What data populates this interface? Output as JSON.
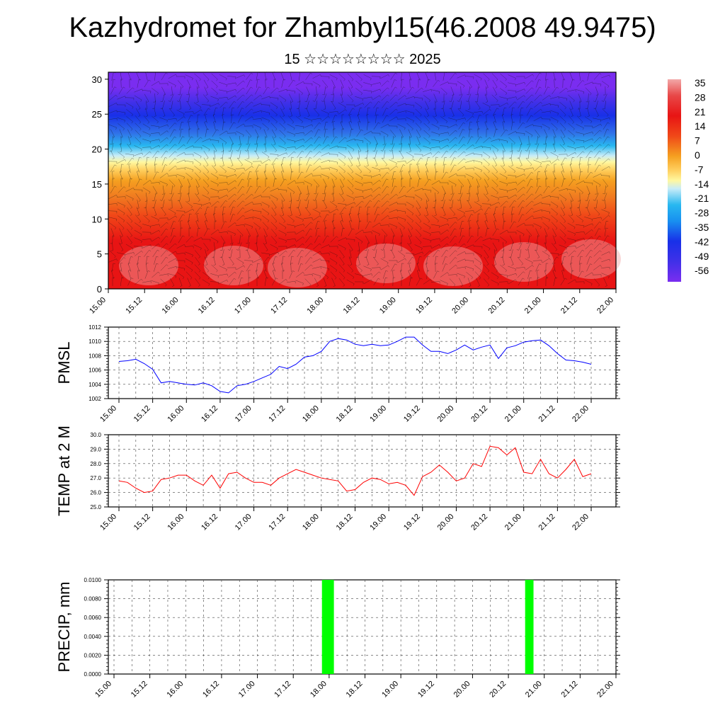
{
  "title": "Kazhydromet for Zhambyl15(46.2008 49.9475)",
  "subtitle": "15 ☆☆☆☆☆☆☆☆ 2025",
  "x_ticks": [
    "15.00",
    "15.12",
    "16.00",
    "16.12",
    "17.00",
    "17.12",
    "18.00",
    "18.12",
    "19.00",
    "19.12",
    "20.00",
    "20.12",
    "21.00",
    "21.12",
    "22.00"
  ],
  "chart_data": [
    {
      "type": "heatmap",
      "xlabel": "",
      "ylabel": "",
      "y_ticks": [
        0,
        5,
        10,
        15,
        20,
        25,
        30
      ],
      "ylim": [
        0,
        31
      ],
      "x_categories_ref": "x_ticks",
      "colorbar_labels": [
        "35",
        "28",
        "21",
        "14",
        "7",
        "0",
        "-7",
        "-14",
        "-21",
        "-28",
        "-35",
        "-42",
        "-49",
        "-56"
      ],
      "colorbar_range": [
        -60,
        38
      ],
      "colors": {
        "coldest": "#7a2df0",
        "cold": "#1830e8",
        "cool": "#28b8f0",
        "mild": "#fff8a0",
        "warm": "#f5a020",
        "hot": "#e81414",
        "hottest": "#f2a8a8"
      },
      "notes": "vertical profile 0-31 with wind barbs overlaid"
    },
    {
      "type": "line",
      "ylabel": "PMSL",
      "ylim": [
        1002,
        1012
      ],
      "y_ticks": [
        "1002",
        "1004",
        "1006",
        "1008",
        "1010",
        "1012"
      ],
      "series": [
        {
          "color": "#0000ff",
          "values": [
            1007.2,
            1007.3,
            1007.5,
            1006.9,
            1006.1,
            1004.2,
            1004.4,
            1004.2,
            1004.0,
            1003.9,
            1004.2,
            1003.8,
            1003.0,
            1002.8,
            1003.8,
            1004.0,
            1004.4,
            1004.9,
            1005.4,
            1006.5,
            1006.2,
            1006.8,
            1007.8,
            1008.0,
            1008.6,
            1010.0,
            1010.4,
            1010.2,
            1009.6,
            1009.4,
            1009.6,
            1009.4,
            1009.5,
            1010.0,
            1010.6,
            1010.6,
            1009.5,
            1008.6,
            1008.6,
            1008.3,
            1008.8,
            1009.5,
            1008.8,
            1009.2,
            1009.5,
            1007.6,
            1009.1,
            1009.4,
            1009.9,
            1010.1,
            1010.2,
            1009.4,
            1008.3,
            1007.4,
            1007.3,
            1007.1,
            1006.8
          ]
        }
      ]
    },
    {
      "type": "line",
      "ylabel": "TEMP at 2 M",
      "ylim": [
        25,
        30
      ],
      "y_ticks": [
        "25.0",
        "26.0",
        "27.0",
        "28.0",
        "29.0",
        "30.0"
      ],
      "series": [
        {
          "color": "#ff0000",
          "values": [
            26.8,
            26.7,
            26.3,
            26.0,
            26.1,
            26.9,
            27.0,
            27.2,
            27.2,
            26.8,
            26.5,
            27.2,
            26.3,
            27.3,
            27.4,
            27.0,
            26.7,
            26.7,
            26.5,
            27.0,
            27.3,
            27.6,
            27.4,
            27.2,
            27.0,
            26.9,
            26.8,
            26.1,
            26.2,
            26.7,
            27.0,
            26.9,
            26.6,
            26.7,
            26.5,
            25.8,
            27.1,
            27.4,
            27.9,
            27.4,
            26.8,
            27.0,
            28.0,
            27.8,
            29.2,
            29.1,
            28.6,
            29.1,
            27.4,
            27.3,
            28.3,
            27.3,
            27.0,
            27.6,
            28.3,
            27.1,
            27.3
          ]
        }
      ]
    },
    {
      "type": "bar",
      "ylabel": "PRECIP, mm",
      "ylim": [
        0,
        0.01
      ],
      "y_ticks": [
        "0.0000",
        "0.0020",
        "0.0040",
        "0.0060",
        "0.0080",
        "0.0100"
      ],
      "color": "#00ff00",
      "bars": [
        {
          "x_from": 34.8,
          "x_to": 36.8,
          "value": 0.01
        },
        {
          "x_from": 68.8,
          "x_to": 70.2,
          "value": 0.01
        }
      ]
    }
  ]
}
